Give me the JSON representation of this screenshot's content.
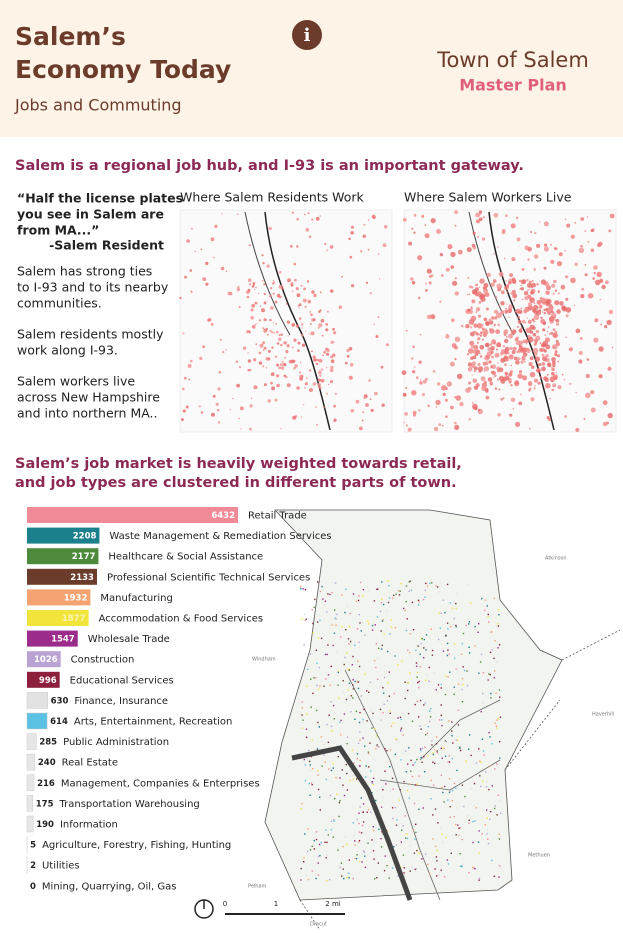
{
  "header": {
    "title": [
      "Salem’s",
      "Economy Today"
    ],
    "subtitle": "Jobs and Commuting",
    "info": "i",
    "town": "Town of Salem",
    "plan": "Master Plan"
  },
  "section1": {
    "heading": "Salem is a regional job hub, and I-93 is an important gateway.",
    "quote": [
      "“Half the license plates",
      "you see in Salem are",
      "from MA...”",
      "-Salem Resident"
    ],
    "paragraphs": [
      [
        "Salem has strong ties",
        "to I-93 and to its nearby",
        "communities."
      ],
      [
        "Salem residents mostly",
        "work along I-93."
      ],
      [
        "Salem workers live",
        "across New Hampshire",
        "and into northern MA.."
      ]
    ],
    "maps": [
      "Where Salem Residents Work",
      "Where Salem Workers Live"
    ]
  },
  "section2": {
    "heading": [
      "Salem’s job market is heavily weighted towards retail,",
      "and job types are clustered in different parts of town."
    ],
    "places": [
      "Atkinson",
      "Windham",
      "Haverhill",
      "Methuen",
      "Pelham",
      "Dracut"
    ],
    "scale": [
      "0",
      "1",
      "2 mi"
    ]
  },
  "chart_data": {
    "type": "hbar",
    "categories": [
      "Retail Trade",
      "Waste Management & Remediation Services",
      "Healthcare & Social Assistance",
      "Professional Scientific Technical Services",
      "Manufacturing",
      "Accommodation & Food Services",
      "Wholesale Trade",
      "Construction",
      "Educational Services",
      "Finance, Insurance",
      "Arts, Entertainment, Recreation",
      "Public Administration",
      "Real Estate",
      "Management, Companies & Enterprises",
      "Transportation Warehousing",
      "Information",
      "Agriculture, Forestry, Fishing, Hunting",
      "Utilities",
      "Mining, Quarrying, Oil, Gas"
    ],
    "values": [
      6432,
      2208,
      2177,
      2133,
      1932,
      1877,
      1547,
      1026,
      996,
      630,
      614,
      285,
      240,
      216,
      175,
      190,
      5,
      2,
      0
    ],
    "colors": [
      "#f08a96",
      "#1b7f8c",
      "#4e8a3c",
      "#6b3b2b",
      "#f4a270",
      "#f1e53c",
      "#9b2c8c",
      "#b9a3d3",
      "#8c1f3c",
      "#e2e2e2",
      "#5cc0e2",
      "#e6e6e6",
      "#e6e6e6",
      "#e6e6e6",
      "#e6e6e6",
      "#e6e6e6",
      "#e6e6e6",
      "#e6e6e6",
      "#e6e6e6"
    ]
  }
}
